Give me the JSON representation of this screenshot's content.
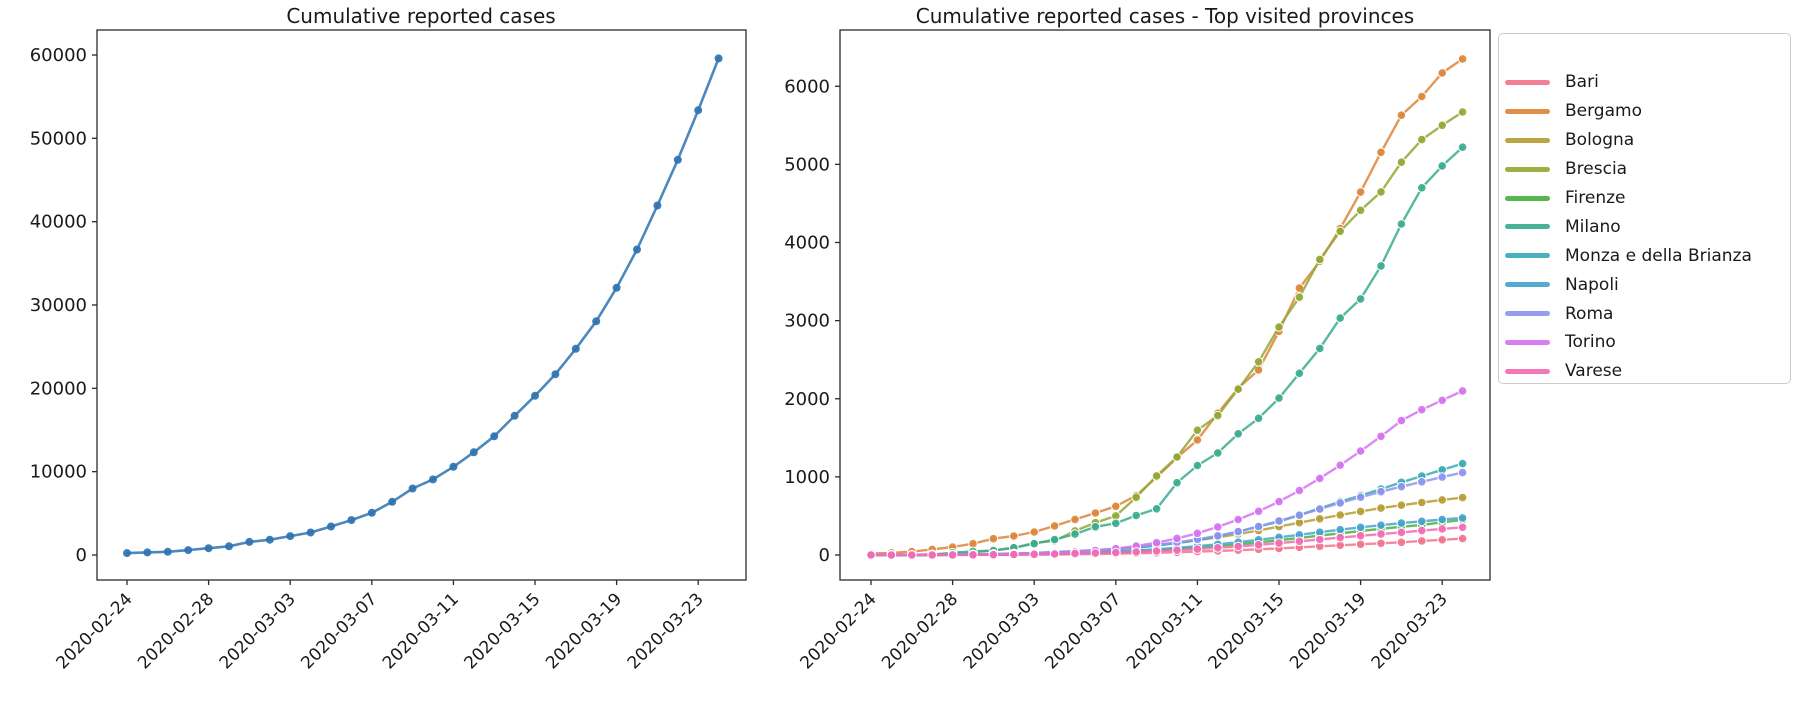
{
  "figure": {
    "background": "#ffffff",
    "text_color": "#1a1a1a",
    "spine_color": "#2b2b2b"
  },
  "chart_data": [
    {
      "type": "line",
      "title": "Cumulative reported cases",
      "xlabel": "",
      "ylabel": "",
      "grid": false,
      "legend": null,
      "ylim": [
        -3000,
        63000
      ],
      "yticks": [
        0,
        10000,
        20000,
        30000,
        40000,
        50000,
        60000
      ],
      "xtick_indices": [
        0,
        4,
        8,
        12,
        16,
        20,
        24,
        28
      ],
      "xtick_labels": [
        "2020-02-24",
        "2020-02-28",
        "2020-03-03",
        "2020-03-07",
        "2020-03-11",
        "2020-03-15",
        "2020-03-19",
        "2020-03-23"
      ],
      "x": [
        "2020-02-24",
        "2020-02-25",
        "2020-02-26",
        "2020-02-27",
        "2020-02-28",
        "2020-02-29",
        "2020-03-01",
        "2020-03-02",
        "2020-03-03",
        "2020-03-04",
        "2020-03-05",
        "2020-03-06",
        "2020-03-07",
        "2020-03-08",
        "2020-03-09",
        "2020-03-10",
        "2020-03-11",
        "2020-03-12",
        "2020-03-13",
        "2020-03-14",
        "2020-03-15",
        "2020-03-16",
        "2020-03-17",
        "2020-03-18",
        "2020-03-19",
        "2020-03-20",
        "2020-03-21",
        "2020-03-22",
        "2020-03-23",
        "2020-03-24"
      ],
      "series": [
        {
          "name": "",
          "color": "#2e73b0",
          "values": [
            229,
            311,
            385,
            588,
            821,
            1049,
            1577,
            1835,
            2263,
            2706,
            3420,
            4189,
            5061,
            6387,
            7985,
            9070,
            10590,
            12320,
            14250,
            16700,
            19100,
            21700,
            24750,
            28050,
            32060,
            36660,
            41940,
            47430,
            53380,
            59590
          ]
        }
      ]
    },
    {
      "type": "line",
      "title": "Cumulative reported cases - Top visited provinces",
      "xlabel": "",
      "ylabel": "",
      "grid": false,
      "legend": {
        "position": "upper-right-outside"
      },
      "ylim": [
        -320,
        6720
      ],
      "yticks": [
        0,
        1000,
        2000,
        3000,
        4000,
        5000,
        6000
      ],
      "xtick_indices": [
        0,
        4,
        8,
        12,
        16,
        20,
        24,
        28
      ],
      "xtick_labels": [
        "2020-02-24",
        "2020-02-28",
        "2020-03-03",
        "2020-03-07",
        "2020-03-11",
        "2020-03-15",
        "2020-03-19",
        "2020-03-23"
      ],
      "x": [
        "2020-02-24",
        "2020-02-25",
        "2020-02-26",
        "2020-02-27",
        "2020-02-28",
        "2020-02-29",
        "2020-03-01",
        "2020-03-02",
        "2020-03-03",
        "2020-03-04",
        "2020-03-05",
        "2020-03-06",
        "2020-03-07",
        "2020-03-08",
        "2020-03-09",
        "2020-03-10",
        "2020-03-11",
        "2020-03-12",
        "2020-03-13",
        "2020-03-14",
        "2020-03-15",
        "2020-03-16",
        "2020-03-17",
        "2020-03-18",
        "2020-03-19",
        "2020-03-20",
        "2020-03-21",
        "2020-03-22",
        "2020-03-23",
        "2020-03-24"
      ],
      "series": [
        {
          "name": "Bari",
          "color": "#f2738c",
          "values": [
            0,
            0,
            0,
            0,
            1,
            1,
            2,
            3,
            5,
            7,
            10,
            13,
            17,
            22,
            28,
            35,
            43,
            52,
            62,
            73,
            85,
            98,
            111,
            124,
            137,
            150,
            163,
            180,
            195,
            210
          ]
        },
        {
          "name": "Bergamo",
          "color": "#dd8538",
          "values": [
            18,
            27,
            43,
            72,
            103,
            145,
            209,
            243,
            295,
            372,
            456,
            537,
            623,
            761,
            997,
            1245,
            1472,
            1815,
            2136,
            2368,
            2864,
            3416,
            3760,
            4179,
            4645,
            5154,
            5629,
            5869,
            6171,
            6350
          ]
        },
        {
          "name": "Bologna",
          "color": "#b59d33",
          "values": [
            0,
            0,
            0,
            0,
            2,
            4,
            8,
            14,
            22,
            32,
            44,
            58,
            76,
            98,
            124,
            154,
            188,
            226,
            268,
            314,
            364,
            414,
            464,
            512,
            558,
            600,
            638,
            672,
            705,
            735
          ]
        },
        {
          "name": "Brescia",
          "color": "#93a835",
          "values": [
            0,
            0,
            0,
            10,
            20,
            33,
            60,
            90,
            155,
            182,
            308,
            413,
            501,
            739,
            1013,
            1254,
            1598,
            1784,
            2122,
            2473,
            2918,
            3300,
            3784,
            4143,
            4412,
            4648,
            5028,
            5317,
            5500,
            5670
          ]
        },
        {
          "name": "Firenze",
          "color": "#46b13e",
          "values": [
            0,
            0,
            0,
            1,
            2,
            3,
            4,
            6,
            10,
            15,
            21,
            28,
            37,
            48,
            61,
            76,
            94,
            114,
            137,
            162,
            189,
            218,
            248,
            278,
            307,
            335,
            361,
            385,
            419,
            450
          ]
        },
        {
          "name": "Milano",
          "color": "#39ab8f",
          "values": [
            0,
            0,
            0,
            0,
            29,
            46,
            58,
            94,
            145,
            197,
            267,
            361,
            406,
            506,
            592,
            925,
            1146,
            1307,
            1551,
            1750,
            2008,
            2326,
            2644,
            3032,
            3278,
            3701,
            4237,
            4700,
            4980,
            5220
          ]
        },
        {
          "name": "Monza e della Brianza",
          "color": "#3aaab4",
          "values": [
            0,
            0,
            0,
            0,
            5,
            8,
            12,
            18,
            26,
            34,
            45,
            58,
            73,
            94,
            120,
            152,
            191,
            239,
            297,
            366,
            426,
            512,
            598,
            684,
            761,
            843,
            930,
            1010,
            1090,
            1170
          ]
        },
        {
          "name": "Napoli",
          "color": "#45a3cd",
          "values": [
            0,
            0,
            0,
            1,
            2,
            3,
            5,
            8,
            13,
            19,
            26,
            35,
            45,
            58,
            74,
            92,
            113,
            137,
            164,
            194,
            226,
            259,
            292,
            324,
            354,
            382,
            408,
            432,
            455,
            475
          ]
        },
        {
          "name": "Roma",
          "color": "#8d95ee",
          "values": [
            2,
            3,
            3,
            4,
            6,
            9,
            14,
            19,
            27,
            38,
            50,
            64,
            80,
            102,
            130,
            160,
            201,
            246,
            300,
            363,
            436,
            510,
            587,
            667,
            740,
            810,
            874,
            937,
            997,
            1055
          ]
        },
        {
          "name": "Torino",
          "color": "#d473f0",
          "values": [
            0,
            0,
            0,
            1,
            2,
            3,
            6,
            10,
            16,
            25,
            38,
            56,
            81,
            115,
            158,
            212,
            278,
            360,
            454,
            560,
            684,
            825,
            980,
            1150,
            1330,
            1520,
            1720,
            1860,
            1980,
            2100
          ]
        },
        {
          "name": "Varese",
          "color": "#f26bb4",
          "values": [
            0,
            0,
            0,
            0,
            1,
            2,
            4,
            6,
            9,
            13,
            18,
            24,
            31,
            40,
            50,
            62,
            76,
            92,
            110,
            130,
            152,
            175,
            199,
            223,
            246,
            268,
            289,
            312,
            334,
            355
          ]
        }
      ]
    }
  ]
}
